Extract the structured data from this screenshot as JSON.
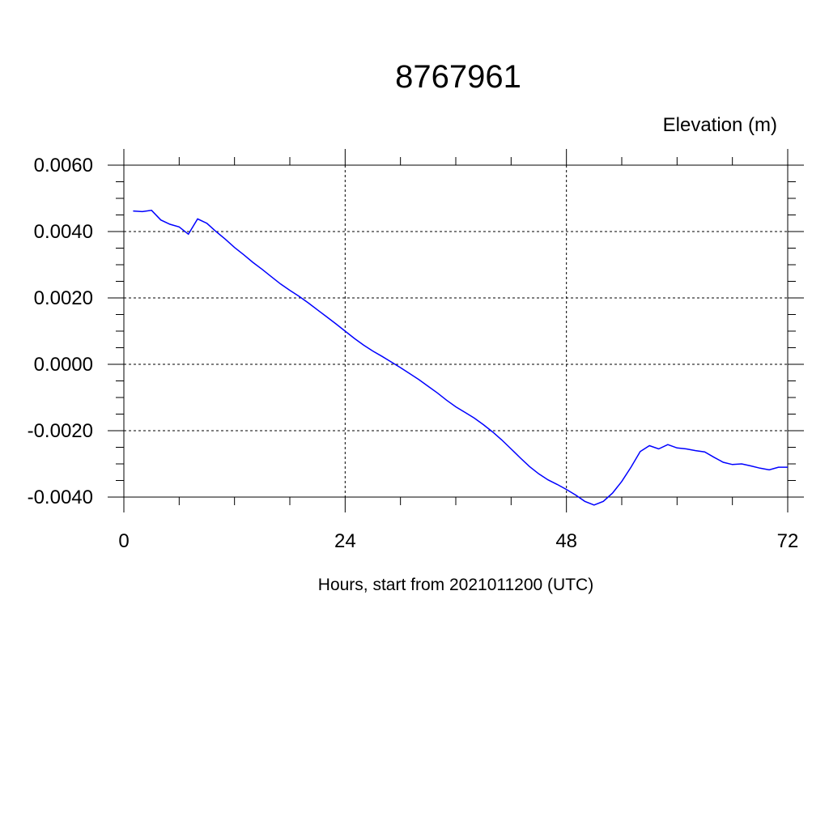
{
  "chart_data": {
    "type": "line",
    "title": "8767961",
    "ylabel": "Elevation (m)",
    "xlabel": "Hours, start from 2021011200 (UTC)",
    "xlim": [
      0,
      72
    ],
    "ylim": [
      -0.004,
      0.006
    ],
    "xticks": [
      0,
      24,
      48,
      72
    ],
    "xtick_labels": [
      "0",
      "24",
      "48",
      "72"
    ],
    "yticks": [
      -0.004,
      -0.002,
      0.0,
      0.002,
      0.004,
      0.006
    ],
    "ytick_labels": [
      "-0.0040",
      "-0.0020",
      "0.0000",
      "0.0020",
      "0.0040",
      "0.0060"
    ],
    "grid": true,
    "legend": "none",
    "series": [
      {
        "color": "#0000ff",
        "x": [
          1,
          2,
          3,
          4,
          5,
          6,
          7,
          8,
          9,
          10,
          11,
          12,
          13,
          14,
          15,
          16,
          17,
          18,
          19,
          20,
          21,
          22,
          23,
          24,
          25,
          26,
          27,
          28,
          29,
          30,
          31,
          32,
          33,
          34,
          35,
          36,
          37,
          38,
          39,
          40,
          41,
          42,
          43,
          44,
          45,
          46,
          47,
          48,
          49,
          50,
          51,
          52,
          53,
          54,
          55,
          56,
          57,
          58,
          59,
          60,
          61,
          62,
          63,
          64,
          65,
          66,
          67,
          68,
          69,
          70,
          71,
          72
        ],
        "y": [
          0.00462,
          0.0046,
          0.00464,
          0.00435,
          0.00422,
          0.00414,
          0.00392,
          0.00438,
          0.00425,
          0.004,
          0.00377,
          0.00352,
          0.0033,
          0.00307,
          0.00286,
          0.00264,
          0.00242,
          0.00223,
          0.00205,
          0.00185,
          0.00164,
          0.00143,
          0.00122,
          0.001,
          0.00078,
          0.00058,
          0.0004,
          0.00024,
          7e-05,
          -0.0001,
          -0.00028,
          -0.00046,
          -0.00066,
          -0.00086,
          -0.00108,
          -0.00128,
          -0.00145,
          -0.00162,
          -0.00182,
          -0.00204,
          -0.00228,
          -0.00255,
          -0.00282,
          -0.00308,
          -0.0033,
          -0.00348,
          -0.00362,
          -0.00377,
          -0.00394,
          -0.00413,
          -0.00424,
          -0.00413,
          -0.00388,
          -0.00353,
          -0.0031,
          -0.00263,
          -0.00245,
          -0.00255,
          -0.00242,
          -0.00252,
          -0.00255,
          -0.0026,
          -0.00264,
          -0.0028,
          -0.00295,
          -0.00302,
          -0.003,
          -0.00306,
          -0.00313,
          -0.00318,
          -0.0031,
          -0.0031
        ]
      }
    ]
  }
}
